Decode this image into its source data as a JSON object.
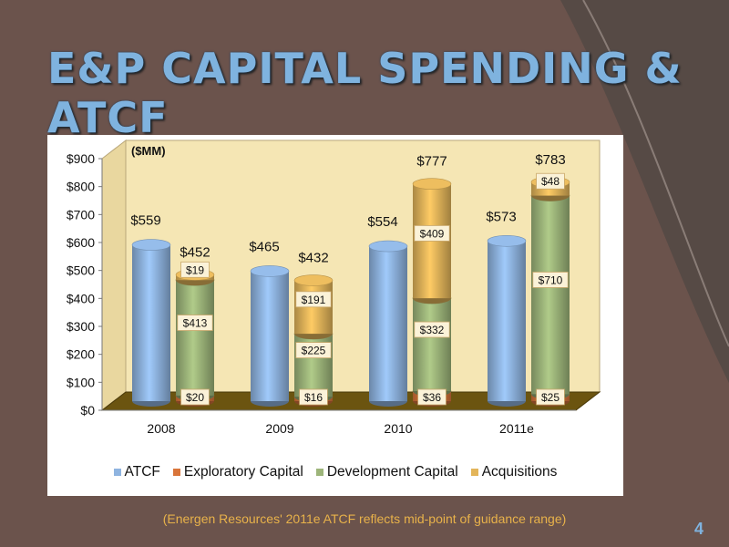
{
  "slide": {
    "title": "E&P CAPITAL SPENDING & ATCF",
    "footnote": "(Energen Resources' 2011e ATCF reflects mid-point of guidance range)",
    "page_number": "4"
  },
  "chart_data": {
    "type": "bar",
    "unit_label": "($MM)",
    "categories": [
      "2008",
      "2009",
      "2010",
      "2011e"
    ],
    "y_ticks": [
      "$0",
      "$100",
      "$200",
      "$300",
      "$400",
      "$500",
      "$600",
      "$700",
      "$800",
      "$900"
    ],
    "ylim": [
      0,
      900
    ],
    "series": [
      {
        "name": "ATCF",
        "values": [
          559,
          465,
          554,
          573
        ],
        "labels": [
          "$559",
          "$465",
          "$554",
          "$573"
        ],
        "color": "#8fb4e0"
      },
      {
        "name": "Exploratory Capital",
        "values": [
          20,
          16,
          36,
          25
        ],
        "labels": [
          "$20",
          "$16",
          "$36",
          "$25"
        ],
        "color": "#d9753a"
      },
      {
        "name": "Development Capital",
        "values": [
          413,
          225,
          332,
          710
        ],
        "labels": [
          "$413",
          "$225",
          "$332",
          "$710"
        ],
        "color": "#9db57a"
      },
      {
        "name": "Acquisitions",
        "values": [
          19,
          191,
          409,
          48
        ],
        "labels": [
          "$19",
          "$191",
          "$409",
          "$48"
        ],
        "color": "#e3b55a"
      }
    ],
    "totals": [
      452,
      432,
      777,
      783
    ],
    "total_labels": [
      "$452",
      "$432",
      "$777",
      "$783"
    ],
    "stacked": [
      "Exploratory Capital",
      "Development Capital",
      "Acquisitions"
    ],
    "grid": false,
    "legend_position": "bottom"
  }
}
